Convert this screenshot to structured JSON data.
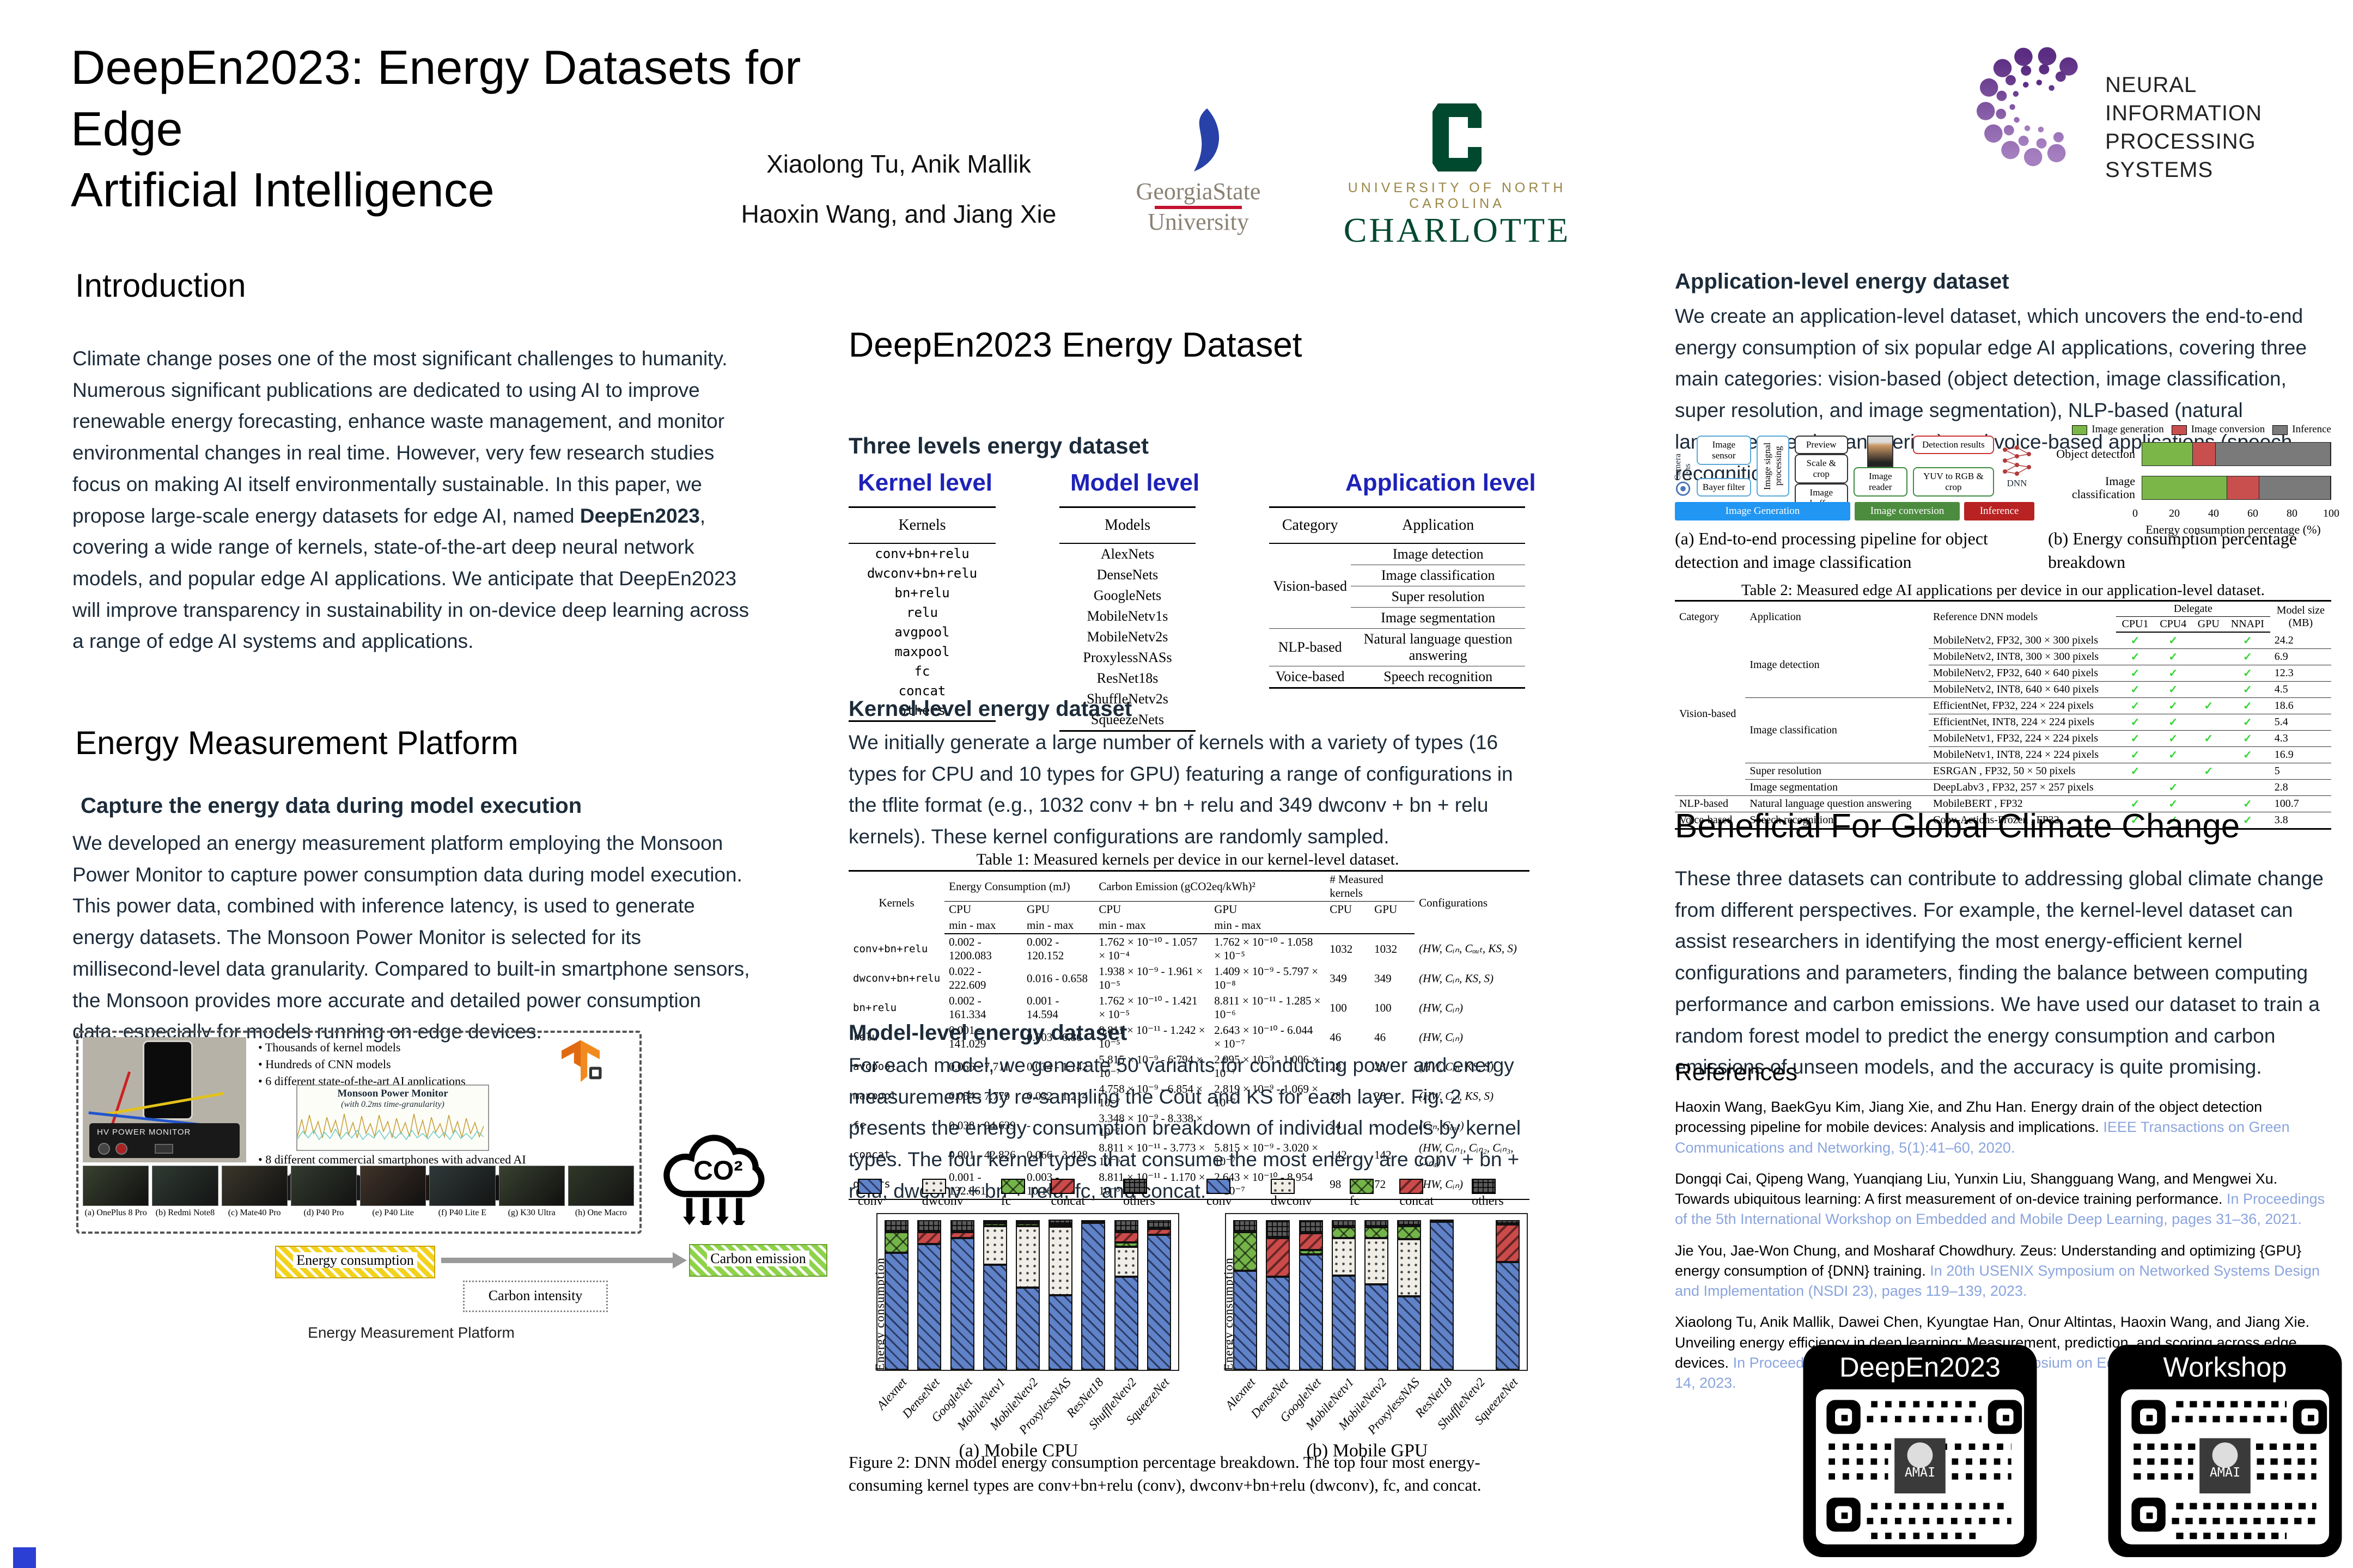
{
  "header": {
    "title_line1": "DeepEn2023: Energy Datasets for Edge",
    "title_line2": "Artificial Intelligence",
    "authors_line1": "Xiaolong Tu, Anik Mallik",
    "authors_line2": "Haoxin Wang, and  Jiang Xie",
    "gsu_line1": "GeorgiaState",
    "gsu_line2": "University",
    "charlotte_line1": "UNIVERSITY OF NORTH CAROLINA",
    "charlotte_line2": "CHARLOTTE",
    "neurips_line1": "NEURAL INFORMATION",
    "neurips_line2": "PROCESSING SYSTEMS"
  },
  "intro": {
    "heading": "Introduction",
    "p_start": "Climate change poses one of the most significant challenges to humanity. Numerous significant publications are dedicated to using AI to improve renewable energy forecasting, enhance waste management, and monitor environmental changes in real time. However, very few research studies focus on making AI itself environmentally sustainable. In this paper, we propose large-scale energy datasets for edge AI, named ",
    "p_bold": "DeepEn2023",
    "p_end": ", covering a wide range of kernels, state-of-the-art deep neural network models, and popular edge AI applications. We anticipate that DeepEn2023 will improve transparency in sustainability in on-device deep learning across a range of edge AI systems and applications."
  },
  "emp": {
    "heading": "Energy Measurement Platform",
    "subhead": "Capture the energy data during model execution",
    "p1": "We developed an energy measurement platform employing the Monsoon Power Monitor to capture power consumption data during model execution. This power data, combined with inference latency, is used to generate energy datasets. The Monsoon Power Monitor is selected for its millisecond-level data granularity. Compared to built-in smartphone sensors, the Monsoon provides more accurate and detailed power consumption data, especially for models running on edge devices.",
    "bullets": [
      "Thousands of kernel models",
      "Hundreds of CNN models",
      "6 different state-of-the-art AI applications"
    ],
    "monitor_label": "HV POWER MONITOR",
    "monsoon_title": "Monsoon Power Monitor",
    "monsoon_subtitle": "(with 0.2ms time-granularity)",
    "smartphone_note": "8 different commercial smartphones with advanced AI chipsets from Qualcomm, HiSilicon, and MediaTek",
    "phones": [
      "(a) OnePlus 8 Pro",
      "(b) Redmi Note8",
      "(c) Mate40 Pro",
      "(d) P40 Pro",
      "(e) P40 Lite",
      "(f) P40 Lite E",
      "(g) K30 Ultra",
      "(h) One Macro"
    ],
    "co2_label": "CO²",
    "co2_arrows": "↓↓↓↓↓",
    "flow_energy": "Energy consumption",
    "flow_intensity": "Carbon intensity",
    "flow_emission": "Carbon emission",
    "fig_caption": "Energy Measurement Platform"
  },
  "mid": {
    "heading": "DeepEn2023 Energy Dataset",
    "three_levels": "Three levels energy dataset",
    "level_kernel": "Kernel level",
    "level_model": "Model level",
    "level_application": "Application level",
    "kernel_table": {
      "header": "Kernels",
      "rows": [
        [
          "conv+bn+relu"
        ],
        [
          "dwconv+bn+relu"
        ],
        [
          "bn+relu"
        ],
        [
          "relu"
        ],
        [
          "avgpool"
        ],
        [
          "maxpool"
        ],
        [
          "fc"
        ],
        [
          "concat"
        ],
        [
          "others"
        ]
      ]
    },
    "model_table": {
      "header": "Models",
      "rows": [
        [
          "AlexNets"
        ],
        [
          "DenseNets"
        ],
        [
          "GoogleNets"
        ],
        [
          "MobileNetv1s"
        ],
        [
          "MobileNetv2s"
        ],
        [
          "ProxylessNASs"
        ],
        [
          "ResNet18s"
        ],
        [
          "ShuffleNetv2s"
        ],
        [
          "SqueezeNets"
        ]
      ]
    },
    "app_table": {
      "h_category": "Category",
      "h_application": "Application",
      "rows": [
        [
          {
            "t": "Vision-based",
            "rs": 4,
            "cls": "cat"
          },
          {
            "t": "Image detection",
            "cls": "tall"
          }
        ],
        [
          {
            "t": "Image classification",
            "cls": "tall"
          }
        ],
        [
          {
            "t": "Super resolution"
          }
        ],
        [
          {
            "t": "Image segmentation"
          }
        ],
        [
          {
            "t": "NLP-based",
            "cls": "cat"
          },
          {
            "t": "Natural language question answering"
          }
        ],
        [
          {
            "t": "Voice-based",
            "cls": "cat"
          },
          {
            "t": "Speech recognition"
          }
        ]
      ]
    },
    "kernel_level_head": "Kernel-level energy dataset",
    "kernel_level_p": "We initially generate a large number of kernels with a variety of types (16 types for CPU and 10 types for GPU) featuring a range of configurations in the tflite format (e.g., 1032 conv + bn + relu and 349 dwconv + bn + relu kernels). These kernel configurations are randomly sampled.",
    "model_level_head": "Model-level energy dataset",
    "model_level_p": "For each model, we generate 50 variants for conducting power and energy measurements by re-sampling the Cout and KS for each layer. Fig. 2 presents the energy consumption breakdown of individual models by kernel types. The four kernel types that consume the most energy are conv + bn + relu, dwconv + bn + relu, fc, and concat.",
    "fig2_caption": "Figure 2: DNN model energy consumption percentage breakdown.  The top four most energy-consuming kernel types are conv+bn+relu (conv), dwconv+bn+relu (dwconv), fc, and concat."
  },
  "t1": {
    "caption": "Table 1: Measured kernels per device in our kernel-level dataset.",
    "h_kernels": "Kernels",
    "h_ec": "Energy Consumption (mJ)",
    "h_ce": "Carbon Emission (gCO2eq/kWh)²",
    "h_meas": "# Measured kernels",
    "h_config": "Configurations",
    "h_cpu": "CPU",
    "h_gpu": "GPU",
    "h_minmax": "min - max",
    "rows": [
      [
        "conv+bn+relu",
        "0.002 - 1200.083",
        "0.002 - 120.152",
        "1.762 × 10⁻¹⁰ - 1.057 × 10⁻⁴",
        "1.762 × 10⁻¹⁰ - 1.058 × 10⁻⁵",
        "1032",
        "1032",
        "(HW, Cᵢₙ, Cₒᵤₜ, KS, S)"
      ],
      [
        "dwconv+bn+relu",
        "0.022 - 222.609",
        "0.016 - 0.658",
        "1.938 × 10⁻⁹ - 1.961 × 10⁻⁵",
        "1.409 × 10⁻⁹ - 5.797 × 10⁻⁸",
        "349",
        "349",
        "(HW, Cᵢₙ, KS, S)"
      ],
      [
        "bn+relu",
        "0.002 - 161.334",
        "0.001 - 14.594",
        "1.762 × 10⁻¹⁰ - 1.421 × 10⁻⁵",
        "8.811 × 10⁻¹¹ - 1.285 × 10⁻⁶",
        "100",
        "100",
        "(HW, Cᵢₙ)"
      ],
      [
        "relu",
        "0.001 - 141.029",
        "0.003 - 6.86",
        "8.811 × 10⁻¹¹ - 1.242 × 10⁻⁵",
        "2.643 × 10⁻¹⁰ - 6.044 × 10⁻⁷",
        "46",
        "46",
        "(HW, Cᵢₙ)"
      ],
      [
        "avgpool",
        "0.066 - 7.711",
        "0.034 - 1.142",
        "5.815 × 10⁻⁹ - 6.794 × 10⁻⁷",
        "2.995 × 10⁻⁹ - 1.006 × 10⁻⁷",
        "28",
        "28",
        "(HW, Cᵢₙ, KS, S)"
      ],
      [
        "maxpool",
        "0.054 - 7.779",
        "0.032 - 1.214",
        "4.758 × 10⁻⁹ - 6.854 × 10⁻⁷",
        "2.819 × 10⁻⁹ - 1.069 × 10⁻⁷",
        "28",
        "28",
        "(HW, Cᵢₙ, KS, S)"
      ],
      [
        "fc",
        "0.038 - 94.639",
        "-",
        "3.348 × 10⁻⁹ - 8.338 × 10⁻⁷",
        "-",
        "24",
        "-",
        "(Cᵢₙ, Cₒᵤₜ)"
      ],
      [
        "concat",
        "0.001 - 42.826",
        "0.066 - 3.428",
        "8.811 × 10⁻¹¹ - 3.773 × 10⁻⁶",
        "5.815 × 10⁻⁹ - 3.020 × 10⁻⁷",
        "142",
        "142",
        "(HW, Cᵢₙ₁, Cᵢₙ₂, Cᵢₙ₃, Cᵢₙ₄)"
      ],
      [
        "others",
        "0.001 - 132.861",
        "0.003 - 10.163",
        "8.811 × 10⁻¹¹ - 1.170 × 10⁻⁵",
        "2.643 × 10⁻¹⁰ - 8.954 × 10⁻⁷",
        "98",
        "72",
        "(HW, Cᵢₙ)"
      ]
    ]
  },
  "right": {
    "app_head": "Application-level energy dataset",
    "app_p": "We create an application-level dataset, which uncovers the end-to-end energy consumption of six popular edge AI applications, covering three main categories: vision-based (object detection, image classification, super resolution, and image segmentation), NLP-based (natural language question answering), and voice-based applications (speech recognition).",
    "cap_a": "(a) End-to-end processing pipeline for object detection and image classification",
    "cap_b": "(b) Energy consumption percentage breakdown",
    "beneficial_head": "Beneficial For Global Climate Change",
    "beneficial_p": "These three datasets can contribute to addressing global climate change from different perspectives. For example, the kernel-level dataset can assist researchers in identifying the most energy-efficient kernel configurations and parameters, finding the balance between computing performance and carbon emissions. We have used our dataset to train a random forest model to predict the energy consumption and carbon emissions of unseen models, and the accuracy is quite promising.",
    "refs_head": "References",
    "refs": [
      {
        "text": "Haoxin Wang, BaekGyu Kim, Jiang Xie, and Zhu Han. Energy drain of the object detection processing pipeline for mobile devices: Analysis and implications. ",
        "link": "IEEE Transactions on Green Communications and Networking, 5(1):41–60, 2020."
      },
      {
        "text": "Dongqi Cai, Qipeng Wang, Yuanqiang Liu, Yunxin Liu, Shangguang Wang, and Mengwei Xu. Towards ubiquitous learning: A first measurement of on-device training performance. ",
        "link": "In Proceedings of the 5th International Workshop on Embedded and Mobile Deep Learning, pages 31–36, 2021."
      },
      {
        "text": "Jie You, Jae-Won Chung, and Mosharaf Chowdhury. Zeus: Understanding and optimizing {GPU} energy consumption of {DNN} training. ",
        "link": "In 20th USENIX Symposium on Networked Systems Design and Implementation (NSDI 23), pages 119–139, 2023."
      },
      {
        "text": "Xiaolong Tu, Anik Mallik, Dawei Chen, Kyungtae Han, Onur Altintas, Haoxin Wang, and Jiang Xie. Unveiling energy efficiency in deep learning: Measurement, prediction, and scoring across edge devices. ",
        "link": "In Proceedings of the Eighth ACM/IEEE Symposium on Edge Computing (SEC), pages 1–14, 2023."
      }
    ],
    "qr": [
      {
        "label": "DeepEn2023",
        "center": "AMAI"
      },
      {
        "label": "Workshop",
        "center": "AMAI"
      }
    ]
  },
  "pipeline": {
    "camera_lens": "Camera Lens",
    "image_sensor": "Image sensor",
    "bayer_filter": "Bayer filter",
    "isp": "Image signal processing",
    "preview": "Preview",
    "scale_crop": "Scale & crop",
    "image_buffer": "Image buffer",
    "image_reader": "Image reader",
    "yuv": "YUV to RGB & crop",
    "detection_results": "Detection results",
    "dnn": "DNN",
    "band_generation": "Image Generation",
    "band_conversion": "Image conversion",
    "band_inference": "Inference"
  },
  "t2": {
    "caption": "Table 2: Measured edge AI applications per device in our application-level dataset.",
    "h_category": "Category",
    "h_application": "Application",
    "h_models": "Reference DNN models",
    "h_delegate": "Delegate",
    "h_cpu1": "CPU1",
    "h_cpu4": "CPU4",
    "h_gpu": "GPU",
    "h_nnapi": "NNAPI",
    "h_size1": "Model size",
    "h_size2": "(MB)",
    "rows": [
      [
        {
          "t": "Vision-based",
          "rs": 10
        },
        {
          "t": "Image detection",
          "rs": 4
        },
        "MobileNetv2, FP32, 300 × 300 pixels",
        "✓",
        "✓",
        "",
        "✓",
        "24.2"
      ],
      [
        "MobileNetv2, INT8, 300 × 300 pixels",
        "✓",
        "✓",
        "",
        "✓",
        "6.9"
      ],
      [
        "MobileNetv2, FP32, 640 × 640 pixels",
        "✓",
        "✓",
        "",
        "✓",
        "12.3"
      ],
      [
        "MobileNetv2, INT8, 640 × 640 pixels",
        "✓",
        "✓",
        "",
        "✓",
        "4.5"
      ],
      [
        {
          "t": "Image classification",
          "rs": 4
        },
        "EfficientNet, FP32, 224 × 224 pixels",
        "✓",
        "✓",
        "✓",
        "✓",
        "18.6"
      ],
      [
        "EfficientNet, INT8, 224 × 224 pixels",
        "✓",
        "✓",
        "",
        "✓",
        "5.4"
      ],
      [
        "MobileNetv1, FP32, 224 × 224 pixels",
        "✓",
        "✓",
        "✓",
        "✓",
        "4.3"
      ],
      [
        "MobileNetv1, INT8, 224 × 224 pixels",
        "✓",
        "✓",
        "",
        "✓",
        "16.9"
      ],
      [
        "Super resolution",
        "ESRGAN , FP32, 50 × 50 pixels",
        "✓",
        "",
        "✓",
        "",
        "5"
      ],
      [
        "Image segmentation",
        "DeepLabv3 , FP32, 257 × 257 pixels",
        "",
        "✓",
        "",
        "",
        "2.8"
      ],
      [
        {
          "t": "NLP-based"
        },
        "Natural language question answering",
        "MobileBERT , FP32",
        "✓",
        "✓",
        "",
        "✓",
        "100.7"
      ],
      [
        {
          "t": "Voice-based"
        },
        "Speech recognition",
        "Conv-Actions-Frozen , FP32",
        "✓",
        "✓",
        "",
        "✓",
        "3.8"
      ]
    ]
  },
  "figure2": {
    "legend": [
      "conv",
      "dwconv",
      "fc",
      "concat",
      "others"
    ]
  },
  "app_figure": {
    "legend": [
      "Image generation",
      "Image conversion",
      "Inference"
    ]
  },
  "chart_data": [
    {
      "type": "bar",
      "stacked": true,
      "title": "(a) Mobile CPU",
      "ylabel": "Energy consumption percentage (%)",
      "ylim": [
        0,
        100
      ],
      "categories": [
        "Alexnet",
        "DenseNet",
        "GoogleNet",
        "MobileNetv1",
        "MobileNetv2",
        "ProxylessNAS",
        "ResNet18",
        "ShuffleNetv2",
        "SqueezeNet"
      ],
      "series": [
        {
          "name": "conv",
          "values": [
            78,
            84,
            88,
            70,
            55,
            50,
            98,
            62,
            90
          ]
        },
        {
          "name": "dwconv",
          "values": [
            0,
            0,
            0,
            26,
            41,
            46,
            0,
            20,
            0
          ]
        },
        {
          "name": "fc",
          "values": [
            14,
            0,
            0,
            1.5,
            1.5,
            1,
            0,
            3,
            0
          ]
        },
        {
          "name": "concat",
          "values": [
            0,
            8,
            4,
            0,
            0,
            0,
            0,
            7,
            4
          ]
        },
        {
          "name": "others",
          "values": [
            8,
            8,
            8,
            2.5,
            2.5,
            3,
            2,
            8,
            6
          ]
        }
      ]
    },
    {
      "type": "bar",
      "stacked": true,
      "title": "(b) Mobile GPU",
      "ylabel": "Energy consumption percentage (%)",
      "ylim": [
        0,
        100
      ],
      "categories": [
        "Alexnet",
        "DenseNet",
        "GoogleNet",
        "MobileNetv1",
        "MobileNetv2",
        "ProxylessNAS",
        "ResNet18",
        "ShuffleNetv2",
        "SqueezeNet"
      ],
      "series": [
        {
          "name": "conv",
          "values": [
            66,
            62,
            77,
            63,
            57,
            49,
            99,
            0,
            72
          ]
        },
        {
          "name": "dwconv",
          "values": [
            0,
            0,
            0,
            25,
            31,
            38,
            0,
            0,
            0
          ]
        },
        {
          "name": "fc",
          "values": [
            26,
            0,
            3,
            7,
            7,
            9,
            0,
            0,
            0
          ]
        },
        {
          "name": "concat",
          "values": [
            0,
            26,
            11,
            0,
            0,
            0,
            0,
            0,
            25
          ]
        },
        {
          "name": "others",
          "values": [
            8,
            12,
            9,
            5,
            5,
            4,
            1,
            0,
            3
          ]
        }
      ]
    },
    {
      "type": "bar",
      "horizontal": true,
      "title": "(b) Energy consumption percentage breakdown",
      "xlabel": "Energy consumption percentage (%)",
      "xlim": [
        0,
        100
      ],
      "xticks": [
        0,
        20,
        40,
        60,
        80,
        100
      ],
      "categories": [
        "Object detection",
        "Image classification"
      ],
      "series": [
        {
          "name": "Image generation",
          "cls": "c-gen",
          "values": [
            27,
            45
          ]
        },
        {
          "name": "Image conversion",
          "cls": "c-conv",
          "values": [
            12,
            17
          ]
        },
        {
          "name": "Inference",
          "cls": "c-inf",
          "values": [
            61,
            38
          ]
        }
      ]
    }
  ]
}
